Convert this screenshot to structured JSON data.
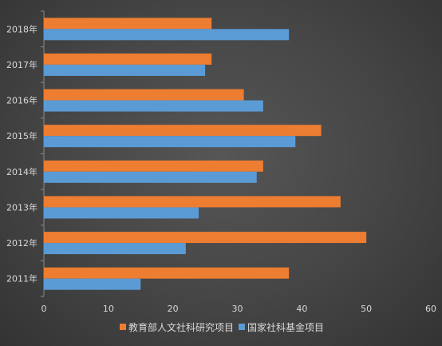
{
  "chart_data": {
    "type": "bar",
    "orientation": "horizontal",
    "categories": [
      "2018年",
      "2017年",
      "2016年",
      "2015年",
      "2014年",
      "2013年",
      "2012年",
      "2011年"
    ],
    "series": [
      {
        "name": "教育部人文社科研究项目",
        "color": "#ED7D31",
        "values": [
          26,
          26,
          31,
          43,
          34,
          46,
          50,
          38
        ]
      },
      {
        "name": "国家社科基金项目",
        "color": "#5B9BD5",
        "values": [
          38,
          25,
          34,
          39,
          33,
          24,
          22,
          15
        ]
      }
    ],
    "xlim": [
      0,
      60
    ],
    "xticks": [
      "0",
      "10",
      "20",
      "30",
      "40",
      "50",
      "60"
    ],
    "title": "",
    "xlabel": "",
    "ylabel": "",
    "grid": false,
    "legend_position": "bottom",
    "background": "#444444",
    "text_color": "#d9d9d9"
  }
}
